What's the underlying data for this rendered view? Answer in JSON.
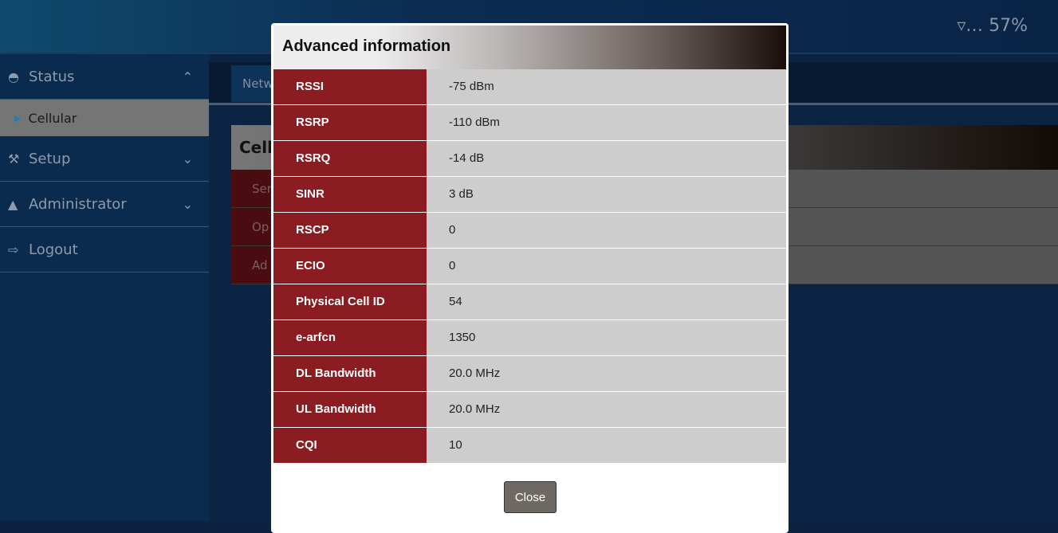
{
  "header": {
    "signal_icon": "signal-antenna-icon",
    "signal_percent": "57%"
  },
  "sidebar": {
    "items": [
      {
        "label": "Status",
        "icon": "dashboard-icon",
        "chevron": "up"
      },
      {
        "label": "Cellular",
        "sub": true
      },
      {
        "label": "Setup",
        "icon": "gavel-icon",
        "chevron": "down"
      },
      {
        "label": "Administrator",
        "icon": "user-icon",
        "chevron": "down"
      },
      {
        "label": "Logout",
        "icon": "logout-icon"
      }
    ]
  },
  "background": {
    "tab": "Netw",
    "panel_title": "Cellu",
    "rows": [
      "Ser",
      "Op",
      "Ad"
    ]
  },
  "modal": {
    "title": "Advanced information",
    "close_label": "Close",
    "rows": [
      {
        "label": "RSSI",
        "value": "-75 dBm"
      },
      {
        "label": "RSRP",
        "value": "-110 dBm"
      },
      {
        "label": "RSRQ",
        "value": "-14 dB"
      },
      {
        "label": "SINR",
        "value": "3 dB"
      },
      {
        "label": "RSCP",
        "value": "0"
      },
      {
        "label": "ECIO",
        "value": "0"
      },
      {
        "label": "Physical Cell ID",
        "value": "54"
      },
      {
        "label": "e-arfcn",
        "value": "1350"
      },
      {
        "label": "DL Bandwidth",
        "value": "20.0 MHz"
      },
      {
        "label": "UL Bandwidth",
        "value": "20.0 MHz"
      },
      {
        "label": "CQI",
        "value": "10"
      }
    ]
  }
}
